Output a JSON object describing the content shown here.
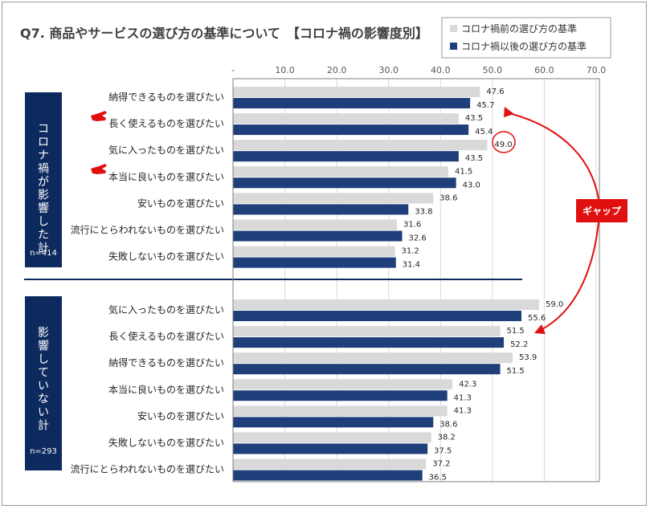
{
  "title": "Q7. 商品やサービスの選び方の基準について　【コロナ禍の影響度別】",
  "legend": [
    {
      "label": "コロナ禍前の選び方の基準",
      "color": "#d9d9d9"
    },
    {
      "label": "コロナ禍以後の選び方の基準",
      "color": "#1f3f7a"
    }
  ],
  "colors": {
    "before": "#d9d9d9",
    "after": "#1f3f7a",
    "group_box": "#0d2a5e",
    "accent": "#e01010"
  },
  "annotations": {
    "gap_label": "ギャップ",
    "circled_value": "49.0",
    "pointer_icon": "pointing-hand-icon"
  },
  "chart_data": {
    "type": "bar",
    "orientation": "horizontal",
    "x_ticks": [
      "-",
      "10.0",
      "20.0",
      "30.0",
      "40.0",
      "50.0",
      "60.0",
      "70.0"
    ],
    "xlim": [
      0,
      70
    ],
    "grid": true,
    "legend_position": "top-right",
    "series_names": [
      "コロナ禍前の選び方の基準",
      "コロナ禍以後の選び方の基準"
    ],
    "groups": [
      {
        "label": "コロナ禍が影響した計",
        "n": "n=414",
        "rows": [
          {
            "category": "納得できるものを選びたい",
            "before": 47.6,
            "after": 45.7
          },
          {
            "category": "長く使えるものを選びたい",
            "before": 43.5,
            "after": 45.4
          },
          {
            "category": "気に入ったものを選びたい",
            "before": 49.0,
            "after": 43.5
          },
          {
            "category": "本当に良いものを選びたい",
            "before": 41.5,
            "after": 43.0
          },
          {
            "category": "安いものを選びたい",
            "before": 38.6,
            "after": 33.8
          },
          {
            "category": "流行にとらわれないものを選びたい",
            "before": 31.6,
            "after": 32.6
          },
          {
            "category": "失敗しないものを選びたい",
            "before": 31.2,
            "after": 31.4
          }
        ]
      },
      {
        "label": "影響していない計",
        "n": "n=293",
        "rows": [
          {
            "category": "気に入ったものを選びたい",
            "before": 59.0,
            "after": 55.6
          },
          {
            "category": "長く使えるものを選びたい",
            "before": 51.5,
            "after": 52.2
          },
          {
            "category": "納得できるものを選びたい",
            "before": 53.9,
            "after": 51.5
          },
          {
            "category": "本当に良いものを選びたい",
            "before": 42.3,
            "after": 41.3
          },
          {
            "category": "安いものを選びたい",
            "before": 41.3,
            "after": 38.6
          },
          {
            "category": "失敗しないものを選びたい",
            "before": 38.2,
            "after": 37.5
          },
          {
            "category": "流行にとらわれないものを選びたい",
            "before": 37.2,
            "after": 36.5
          }
        ]
      }
    ]
  }
}
